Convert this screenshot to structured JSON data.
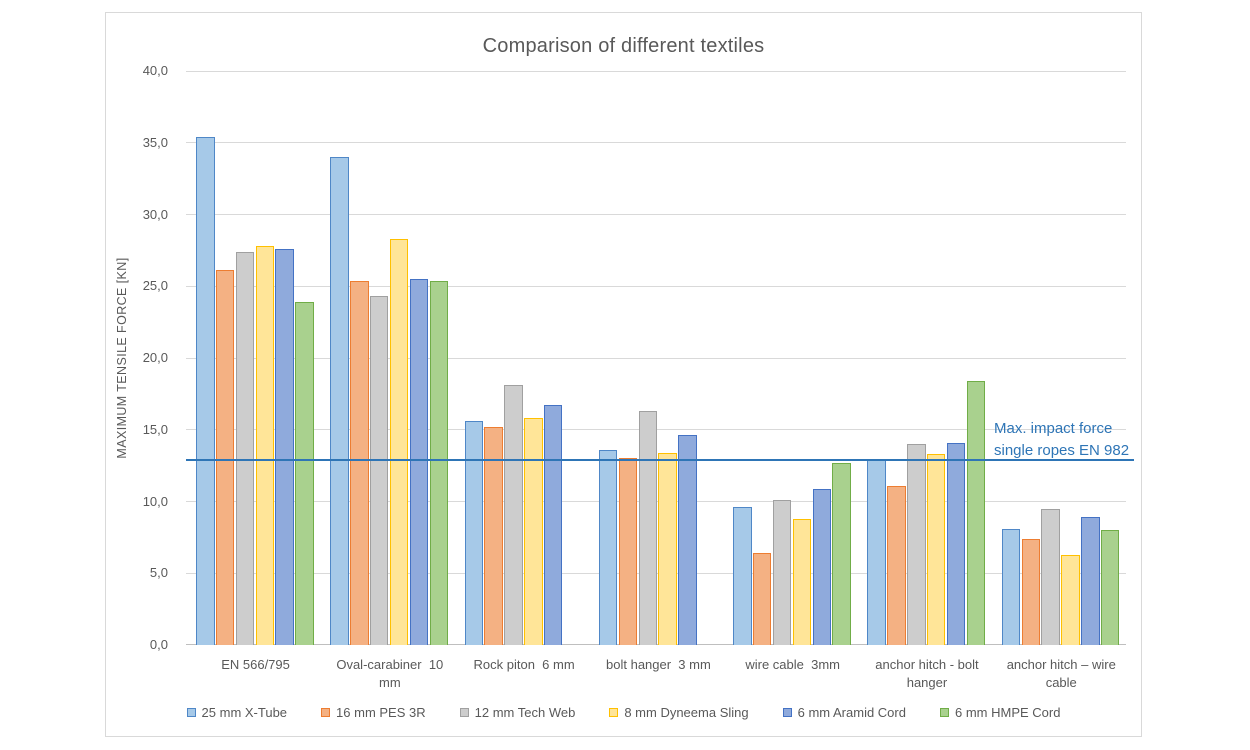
{
  "chart_data": {
    "type": "bar",
    "title": "Comparison of different textiles",
    "ylabel": "MAXIMUM TENSILE FORCE [KN]",
    "xlabel": "",
    "ylim": [
      0,
      40
    ],
    "ytick_step": 5,
    "ytick_labels": [
      "0,0",
      "5,0",
      "10,0",
      "15,0",
      "20,0",
      "25,0",
      "30,0",
      "35,0",
      "40,0"
    ],
    "grid": true,
    "legend_position": "bottom",
    "categories": [
      "EN 566/795",
      "Oval-carabiner  10 mm",
      "Rock piton  6 mm",
      "bolt hanger  3 mm",
      "wire cable  3mm",
      "anchor hitch - bolt hanger",
      "anchor hitch – wire cable"
    ],
    "series": [
      {
        "name": "25 mm X-Tube",
        "fill": "#a6c9e8",
        "border": "#4f87c7",
        "values": [
          35.4,
          34.0,
          15.6,
          13.6,
          9.6,
          12.9,
          8.1
        ]
      },
      {
        "name": "16 mm PES 3R",
        "fill": "#f4b183",
        "border": "#ed7d31",
        "values": [
          26.1,
          25.4,
          15.2,
          13.0,
          6.4,
          11.1,
          7.4
        ]
      },
      {
        "name": "12 mm Tech Web",
        "fill": "#cdcdcd",
        "border": "#a0a0a0",
        "values": [
          27.4,
          24.3,
          18.1,
          16.3,
          10.1,
          14.0,
          9.5
        ]
      },
      {
        "name": "8 mm Dyneema Sling",
        "fill": "#ffe598",
        "border": "#ffc000",
        "values": [
          27.8,
          28.3,
          15.8,
          13.4,
          8.8,
          13.3,
          6.3
        ]
      },
      {
        "name": "6 mm Aramid Cord",
        "fill": "#8faadc",
        "border": "#4472c4",
        "values": [
          27.6,
          25.5,
          16.7,
          14.6,
          10.9,
          14.1,
          8.9
        ]
      },
      {
        "name": "6 mm HMPE Cord",
        "fill": "#a9d18e",
        "border": "#70ad47",
        "values": [
          23.9,
          25.4,
          null,
          null,
          12.7,
          18.4,
          8.0
        ]
      }
    ],
    "ref_line": {
      "value": 12.9,
      "color": "#2e75b6",
      "label": "Max. impact force single ropes EN 982",
      "label_lines": [
        "Max. impact force",
        "single ropes EN 982"
      ]
    }
  },
  "colors": {
    "background": "#ffffff",
    "frame_border": "#d9d9d9",
    "gridline": "#d9d9d9",
    "axis_line": "#bfbfbf",
    "text": "#595959",
    "annotation": "#2e75b6"
  }
}
